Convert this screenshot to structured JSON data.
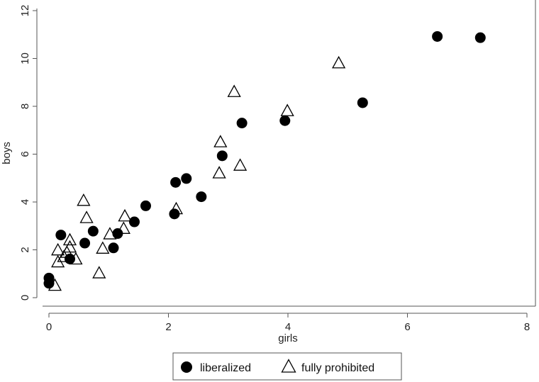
{
  "chart_data": {
    "type": "scatter",
    "title": "",
    "xlabel": "girls",
    "ylabel": "boys",
    "xlim": [
      0,
      8
    ],
    "ylim": [
      0,
      12
    ],
    "x_ticks": [
      "0",
      "2",
      "4",
      "6",
      "8"
    ],
    "y_ticks": [
      "0",
      "2",
      "4",
      "6",
      "8",
      "10",
      "12"
    ],
    "grid": false,
    "legend_position": "bottom",
    "series": [
      {
        "name": "liberalized",
        "marker": "filled-circle",
        "color": "#000000",
        "points": [
          [
            0.0,
            0.82
          ],
          [
            0.0,
            0.6
          ],
          [
            0.2,
            2.62
          ],
          [
            0.35,
            1.62
          ],
          [
            0.6,
            2.28
          ],
          [
            0.74,
            2.78
          ],
          [
            1.08,
            2.08
          ],
          [
            1.15,
            2.68
          ],
          [
            1.43,
            3.17
          ],
          [
            1.62,
            3.84
          ],
          [
            2.1,
            3.5
          ],
          [
            2.12,
            4.82
          ],
          [
            2.3,
            4.98
          ],
          [
            2.55,
            4.22
          ],
          [
            2.9,
            5.93
          ],
          [
            3.23,
            7.3
          ],
          [
            3.95,
            7.4
          ],
          [
            5.25,
            8.15
          ],
          [
            6.5,
            10.92
          ],
          [
            7.22,
            10.87
          ]
        ]
      },
      {
        "name": "fully prohibited",
        "marker": "hollow-triangle",
        "color": "#000000",
        "points": [
          [
            0.1,
            0.5
          ],
          [
            0.15,
            1.48
          ],
          [
            0.15,
            1.98
          ],
          [
            0.25,
            1.7
          ],
          [
            0.3,
            1.88
          ],
          [
            0.35,
            2.1
          ],
          [
            0.35,
            2.4
          ],
          [
            0.45,
            1.6
          ],
          [
            0.58,
            4.05
          ],
          [
            0.63,
            3.33
          ],
          [
            0.84,
            1.02
          ],
          [
            0.9,
            2.05
          ],
          [
            1.02,
            2.65
          ],
          [
            1.25,
            2.88
          ],
          [
            1.27,
            3.4
          ],
          [
            2.13,
            3.7
          ],
          [
            2.85,
            5.2
          ],
          [
            2.87,
            6.5
          ],
          [
            3.1,
            8.6
          ],
          [
            3.2,
            5.52
          ],
          [
            3.99,
            7.8
          ],
          [
            4.85,
            9.8
          ]
        ]
      }
    ]
  }
}
